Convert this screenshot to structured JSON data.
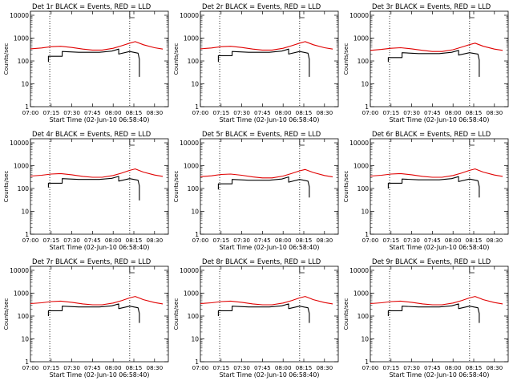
{
  "figure": {
    "xlabel": "Start Time (02-Jun-10 06:58:40)",
    "ylabel": "Counts/sec",
    "xticks": [
      "07:00",
      "07:15",
      "07:30",
      "07:45",
      "08:00",
      "08:15",
      "08:30"
    ],
    "yticks": [
      "1",
      "10",
      "100",
      "1000",
      "10000"
    ],
    "colors": {
      "events": "#000000",
      "lld": "#e00000",
      "axes": "#000000"
    }
  },
  "chart_data": [
    {
      "type": "line",
      "title": "Det 1r BLACK = Events, RED = LLD",
      "xlabel": "Start Time (02-Jun-10 06:58:40)",
      "ylabel": "Counts/sec",
      "xlim": [
        "07:00",
        "08:40"
      ],
      "ylim": [
        1,
        15000
      ],
      "yscale": "log",
      "grid": false,
      "markers_vertical_dotted": [
        "07:14",
        "08:12"
      ],
      "series": [
        {
          "name": "Events",
          "color": "#000000",
          "x": [
            "07:13",
            "07:13",
            "07:23",
            "07:23",
            "07:35",
            "07:50",
            "07:59",
            "08:04",
            "08:04",
            "08:12",
            "08:18",
            "08:19",
            "08:19"
          ],
          "y": [
            90,
            160,
            160,
            260,
            240,
            240,
            270,
            330,
            200,
            260,
            220,
            120,
            20
          ]
        },
        {
          "name": "LLD",
          "color": "#e00000",
          "x": [
            "07:00",
            "07:08",
            "07:15",
            "07:22",
            "07:30",
            "07:38",
            "07:45",
            "07:52",
            "08:00",
            "08:06",
            "08:12",
            "08:16",
            "08:22",
            "08:30",
            "08:36"
          ],
          "y": [
            340,
            370,
            420,
            440,
            390,
            330,
            300,
            300,
            360,
            460,
            600,
            700,
            510,
            380,
            330
          ]
        }
      ]
    },
    {
      "type": "line",
      "title": "Det 2r BLACK = Events, RED = LLD",
      "xlabel": "Start Time (02-Jun-10 06:58:40)",
      "ylabel": "Counts/sec",
      "xlim": [
        "07:00",
        "08:40"
      ],
      "ylim": [
        1,
        15000
      ],
      "yscale": "log",
      "grid": false,
      "markers_vertical_dotted": [
        "07:14",
        "08:12"
      ],
      "series": [
        {
          "name": "Events",
          "color": "#000000",
          "x": [
            "07:13",
            "07:13",
            "07:23",
            "07:23",
            "07:35",
            "07:50",
            "07:59",
            "08:04",
            "08:04",
            "08:12",
            "08:18",
            "08:19",
            "08:19"
          ],
          "y": [
            90,
            170,
            170,
            260,
            240,
            240,
            270,
            330,
            200,
            260,
            220,
            120,
            20
          ]
        },
        {
          "name": "LLD",
          "color": "#e00000",
          "x": [
            "07:00",
            "07:08",
            "07:15",
            "07:22",
            "07:30",
            "07:38",
            "07:45",
            "07:52",
            "08:00",
            "08:06",
            "08:12",
            "08:16",
            "08:22",
            "08:30",
            "08:36"
          ],
          "y": [
            340,
            370,
            420,
            440,
            390,
            330,
            300,
            300,
            360,
            460,
            600,
            700,
            510,
            380,
            330
          ]
        }
      ]
    },
    {
      "type": "line",
      "title": "Det 3r BLACK = Events, RED = LLD",
      "xlabel": "Start Time (02-Jun-10 06:58:40)",
      "ylabel": "Counts/sec",
      "xlim": [
        "07:00",
        "08:40"
      ],
      "ylim": [
        1,
        15000
      ],
      "yscale": "log",
      "grid": false,
      "markers_vertical_dotted": [
        "07:14",
        "08:12"
      ],
      "series": [
        {
          "name": "Events",
          "color": "#000000",
          "x": [
            "07:13",
            "07:13",
            "07:23",
            "07:23",
            "07:35",
            "07:50",
            "07:59",
            "08:04",
            "08:04",
            "08:12",
            "08:18",
            "08:19",
            "08:19"
          ],
          "y": [
            90,
            140,
            140,
            230,
            210,
            210,
            240,
            290,
            180,
            230,
            200,
            110,
            20
          ]
        },
        {
          "name": "LLD",
          "color": "#e00000",
          "x": [
            "07:00",
            "07:08",
            "07:15",
            "07:22",
            "07:30",
            "07:38",
            "07:45",
            "07:52",
            "08:00",
            "08:06",
            "08:12",
            "08:16",
            "08:22",
            "08:30",
            "08:36"
          ],
          "y": [
            290,
            320,
            360,
            380,
            340,
            290,
            260,
            260,
            310,
            400,
            520,
            600,
            440,
            330,
            290
          ]
        }
      ]
    },
    {
      "type": "line",
      "title": "Det 4r BLACK = Events, RED = LLD",
      "xlabel": "Start Time (02-Jun-10 06:58:40)",
      "ylabel": "Counts/sec",
      "xlim": [
        "07:00",
        "08:40"
      ],
      "ylim": [
        1,
        15000
      ],
      "yscale": "log",
      "grid": false,
      "markers_vertical_dotted": [
        "07:14",
        "08:12"
      ],
      "series": [
        {
          "name": "Events",
          "color": "#000000",
          "x": [
            "07:13",
            "07:13",
            "07:23",
            "07:23",
            "07:35",
            "07:50",
            "07:59",
            "08:04",
            "08:04",
            "08:12",
            "08:18",
            "08:19",
            "08:19"
          ],
          "y": [
            110,
            170,
            170,
            270,
            250,
            250,
            280,
            340,
            210,
            270,
            230,
            130,
            30
          ]
        },
        {
          "name": "LLD",
          "color": "#e00000",
          "x": [
            "07:00",
            "07:08",
            "07:15",
            "07:22",
            "07:30",
            "07:38",
            "07:45",
            "07:52",
            "08:00",
            "08:06",
            "08:12",
            "08:16",
            "08:22",
            "08:30",
            "08:36"
          ],
          "y": [
            350,
            380,
            430,
            450,
            400,
            340,
            310,
            310,
            370,
            470,
            620,
            720,
            520,
            390,
            340
          ]
        }
      ]
    },
    {
      "type": "line",
      "title": "Det 5r BLACK = Events, RED = LLD",
      "xlabel": "Start Time (02-Jun-10 06:58:40)",
      "ylabel": "Counts/sec",
      "xlim": [
        "07:00",
        "08:40"
      ],
      "ylim": [
        1,
        15000
      ],
      "yscale": "log",
      "grid": false,
      "markers_vertical_dotted": [
        "07:14",
        "08:12"
      ],
      "series": [
        {
          "name": "Events",
          "color": "#000000",
          "x": [
            "07:13",
            "07:13",
            "07:23",
            "07:23",
            "07:35",
            "07:50",
            "07:59",
            "08:04",
            "08:04",
            "08:12",
            "08:18",
            "08:19",
            "08:19"
          ],
          "y": [
            90,
            160,
            160,
            250,
            230,
            230,
            260,
            320,
            190,
            250,
            210,
            120,
            40
          ]
        },
        {
          "name": "LLD",
          "color": "#e00000",
          "x": [
            "07:00",
            "07:08",
            "07:15",
            "07:22",
            "07:30",
            "07:38",
            "07:45",
            "07:52",
            "08:00",
            "08:06",
            "08:12",
            "08:16",
            "08:22",
            "08:30",
            "08:36"
          ],
          "y": [
            330,
            360,
            410,
            430,
            380,
            320,
            290,
            290,
            350,
            450,
            590,
            680,
            500,
            370,
            320
          ]
        }
      ]
    },
    {
      "type": "line",
      "title": "Det 6r BLACK = Events, RED = LLD",
      "xlabel": "Start Time (02-Jun-10 06:58:40)",
      "ylabel": "Counts/sec",
      "xlim": [
        "07:00",
        "08:40"
      ],
      "ylim": [
        1,
        15000
      ],
      "yscale": "log",
      "grid": false,
      "markers_vertical_dotted": [
        "07:14",
        "08:12"
      ],
      "series": [
        {
          "name": "Events",
          "color": "#000000",
          "x": [
            "07:13",
            "07:13",
            "07:23",
            "07:23",
            "07:35",
            "07:50",
            "07:59",
            "08:04",
            "08:04",
            "08:12",
            "08:18",
            "08:19",
            "08:19"
          ],
          "y": [
            100,
            170,
            170,
            260,
            240,
            240,
            270,
            330,
            200,
            260,
            220,
            120,
            40
          ]
        },
        {
          "name": "LLD",
          "color": "#e00000",
          "x": [
            "07:00",
            "07:08",
            "07:15",
            "07:22",
            "07:30",
            "07:38",
            "07:45",
            "07:52",
            "08:00",
            "08:06",
            "08:12",
            "08:16",
            "08:22",
            "08:30",
            "08:36"
          ],
          "y": [
            350,
            380,
            430,
            450,
            400,
            340,
            310,
            310,
            370,
            470,
            620,
            720,
            520,
            390,
            340
          ]
        }
      ]
    },
    {
      "type": "line",
      "title": "Det 7r BLACK = Events, RED = LLD",
      "xlabel": "Start Time (02-Jun-10 06:58:40)",
      "ylabel": "Counts/sec",
      "xlim": [
        "07:00",
        "08:40"
      ],
      "ylim": [
        1,
        15000
      ],
      "yscale": "log",
      "grid": false,
      "markers_vertical_dotted": [
        "07:14",
        "08:12"
      ],
      "series": [
        {
          "name": "Events",
          "color": "#000000",
          "x": [
            "07:13",
            "07:13",
            "07:23",
            "07:23",
            "07:35",
            "07:50",
            "07:59",
            "08:04",
            "08:04",
            "08:12",
            "08:18",
            "08:19",
            "08:19"
          ],
          "y": [
            100,
            170,
            170,
            270,
            250,
            250,
            280,
            340,
            210,
            270,
            230,
            130,
            50
          ]
        },
        {
          "name": "LLD",
          "color": "#e00000",
          "x": [
            "07:00",
            "07:08",
            "07:15",
            "07:22",
            "07:30",
            "07:38",
            "07:45",
            "07:52",
            "08:00",
            "08:06",
            "08:12",
            "08:16",
            "08:22",
            "08:30",
            "08:36"
          ],
          "y": [
            350,
            380,
            430,
            450,
            400,
            340,
            310,
            310,
            370,
            470,
            620,
            720,
            520,
            390,
            340
          ]
        }
      ]
    },
    {
      "type": "line",
      "title": "Det 8r BLACK = Events, RED = LLD",
      "xlabel": "Start Time (02-Jun-10 06:58:40)",
      "ylabel": "Counts/sec",
      "xlim": [
        "07:00",
        "08:40"
      ],
      "ylim": [
        1,
        15000
      ],
      "yscale": "log",
      "grid": false,
      "markers_vertical_dotted": [
        "07:14",
        "08:12"
      ],
      "series": [
        {
          "name": "Events",
          "color": "#000000",
          "x": [
            "07:13",
            "07:13",
            "07:23",
            "07:23",
            "07:35",
            "07:50",
            "07:59",
            "08:04",
            "08:04",
            "08:12",
            "08:18",
            "08:19",
            "08:19"
          ],
          "y": [
            100,
            170,
            170,
            270,
            250,
            250,
            280,
            340,
            210,
            270,
            230,
            130,
            50
          ]
        },
        {
          "name": "LLD",
          "color": "#e00000",
          "x": [
            "07:00",
            "07:08",
            "07:15",
            "07:22",
            "07:30",
            "07:38",
            "07:45",
            "07:52",
            "08:00",
            "08:06",
            "08:12",
            "08:16",
            "08:22",
            "08:30",
            "08:36"
          ],
          "y": [
            350,
            380,
            430,
            450,
            400,
            340,
            310,
            310,
            370,
            470,
            620,
            720,
            520,
            390,
            340
          ]
        }
      ]
    },
    {
      "type": "line",
      "title": "Det 9r BLACK = Events, RED = LLD",
      "xlabel": "Start Time (02-Jun-10 06:58:40)",
      "ylabel": "Counts/sec",
      "xlim": [
        "07:00",
        "08:40"
      ],
      "ylim": [
        1,
        15000
      ],
      "yscale": "log",
      "grid": false,
      "markers_vertical_dotted": [
        "07:14",
        "08:12"
      ],
      "series": [
        {
          "name": "Events",
          "color": "#000000",
          "x": [
            "07:13",
            "07:13",
            "07:23",
            "07:23",
            "07:35",
            "07:50",
            "07:59",
            "08:04",
            "08:04",
            "08:12",
            "08:18",
            "08:19",
            "08:19"
          ],
          "y": [
            100,
            170,
            170,
            270,
            250,
            250,
            280,
            340,
            210,
            270,
            230,
            130,
            50
          ]
        },
        {
          "name": "LLD",
          "color": "#e00000",
          "x": [
            "07:00",
            "07:08",
            "07:15",
            "07:22",
            "07:30",
            "07:38",
            "07:45",
            "07:52",
            "08:00",
            "08:06",
            "08:12",
            "08:16",
            "08:22",
            "08:30",
            "08:36"
          ],
          "y": [
            350,
            380,
            430,
            450,
            400,
            340,
            310,
            310,
            370,
            470,
            620,
            720,
            520,
            390,
            340
          ]
        }
      ]
    }
  ]
}
